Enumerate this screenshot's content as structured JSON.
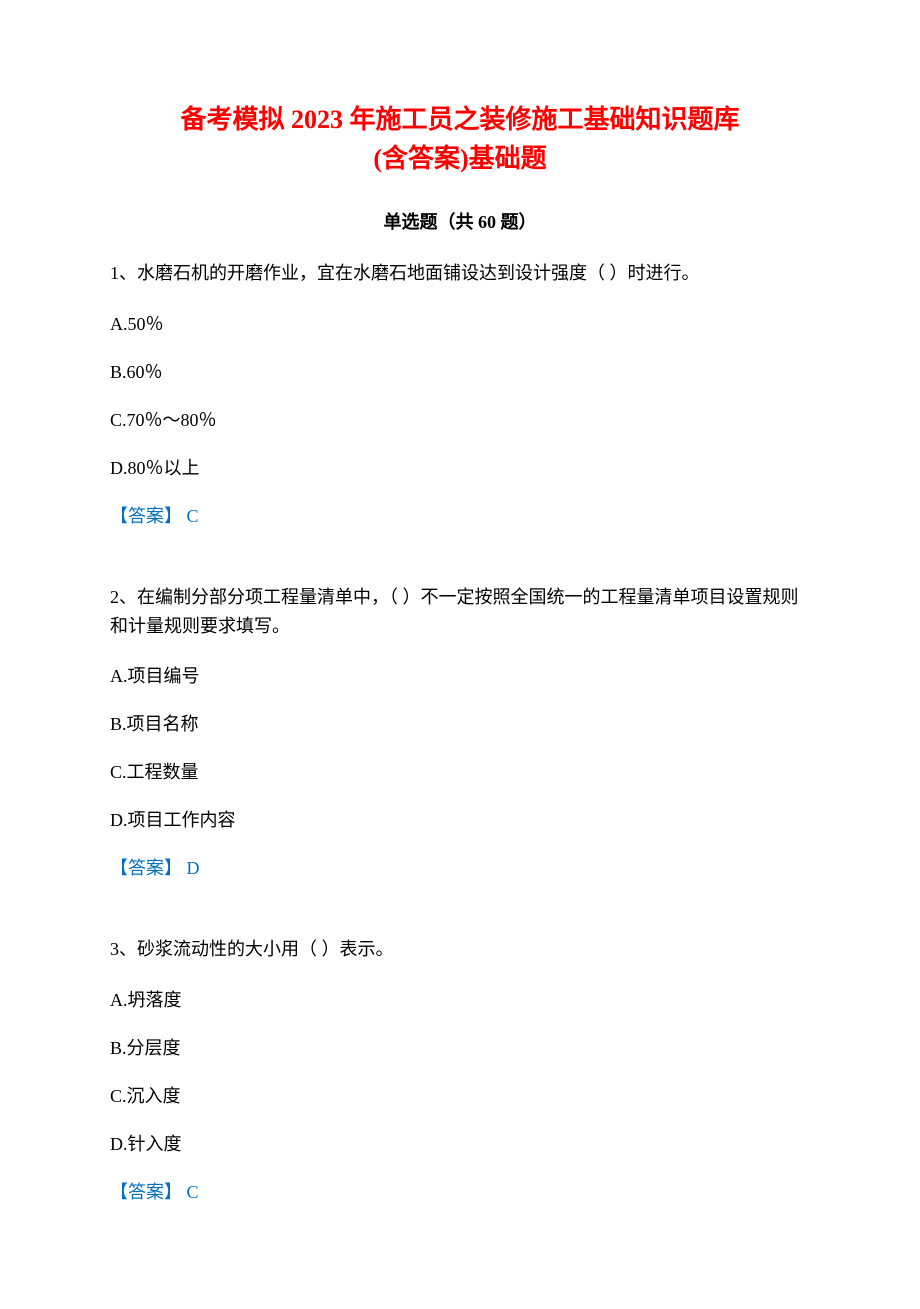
{
  "title_line1": "备考模拟 2023 年施工员之装修施工基础知识题库",
  "title_line2": "(含答案)基础题",
  "section_header": "单选题（共 60 题）",
  "questions": [
    {
      "prompt": "1、水磨石机的开磨作业，宜在水磨石地面铺设达到设计强度（ ）时进行。",
      "options": [
        "A.50％",
        "B.60％",
        "C.70％～80％",
        "D.80％以上"
      ],
      "answer": "【答案】 C"
    },
    {
      "prompt": "2、在编制分部分项工程量清单中，（ ）不一定按照全国统一的工程量清单项目设置规则和计量规则要求填写。",
      "options": [
        "A.项目编号",
        "B.项目名称",
        "C.工程数量",
        "D.项目工作内容"
      ],
      "answer": "【答案】 D"
    },
    {
      "prompt": "3、砂浆流动性的大小用（ ）表示。",
      "options": [
        "A.坍落度",
        "B.分层度",
        "C.沉入度",
        "D.针入度"
      ],
      "answer": "【答案】 C"
    }
  ],
  "colors": {
    "title_color": "#ff0000",
    "text_color": "#000000",
    "answer_color": "#0070c0",
    "background_color": "#ffffff"
  },
  "typography": {
    "title_fontsize": 26,
    "body_fontsize": 18,
    "font_family": "SimSun"
  }
}
